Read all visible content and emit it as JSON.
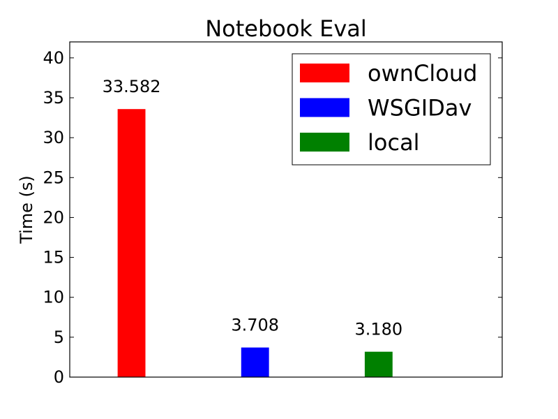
{
  "chart_data": {
    "type": "bar",
    "title": "Notebook Eval",
    "xlabel": "",
    "ylabel": "Time (s)",
    "ylim": [
      0,
      42
    ],
    "yticks": [
      0,
      5,
      10,
      15,
      20,
      25,
      30,
      35,
      40
    ],
    "xlim": [
      0,
      3.5
    ],
    "bar_width": 0.225,
    "grid": false,
    "legend_position": "top-right",
    "series": [
      {
        "name": "ownCloud",
        "color": "#ff0000",
        "x": 0.5,
        "value": 33.582,
        "label": "33.582"
      },
      {
        "name": "WSGIDav",
        "color": "#0000ff",
        "x": 1.5,
        "value": 3.708,
        "label": "3.708"
      },
      {
        "name": "local",
        "color": "#008000",
        "x": 2.5,
        "value": 3.18,
        "label": "3.180"
      }
    ]
  }
}
